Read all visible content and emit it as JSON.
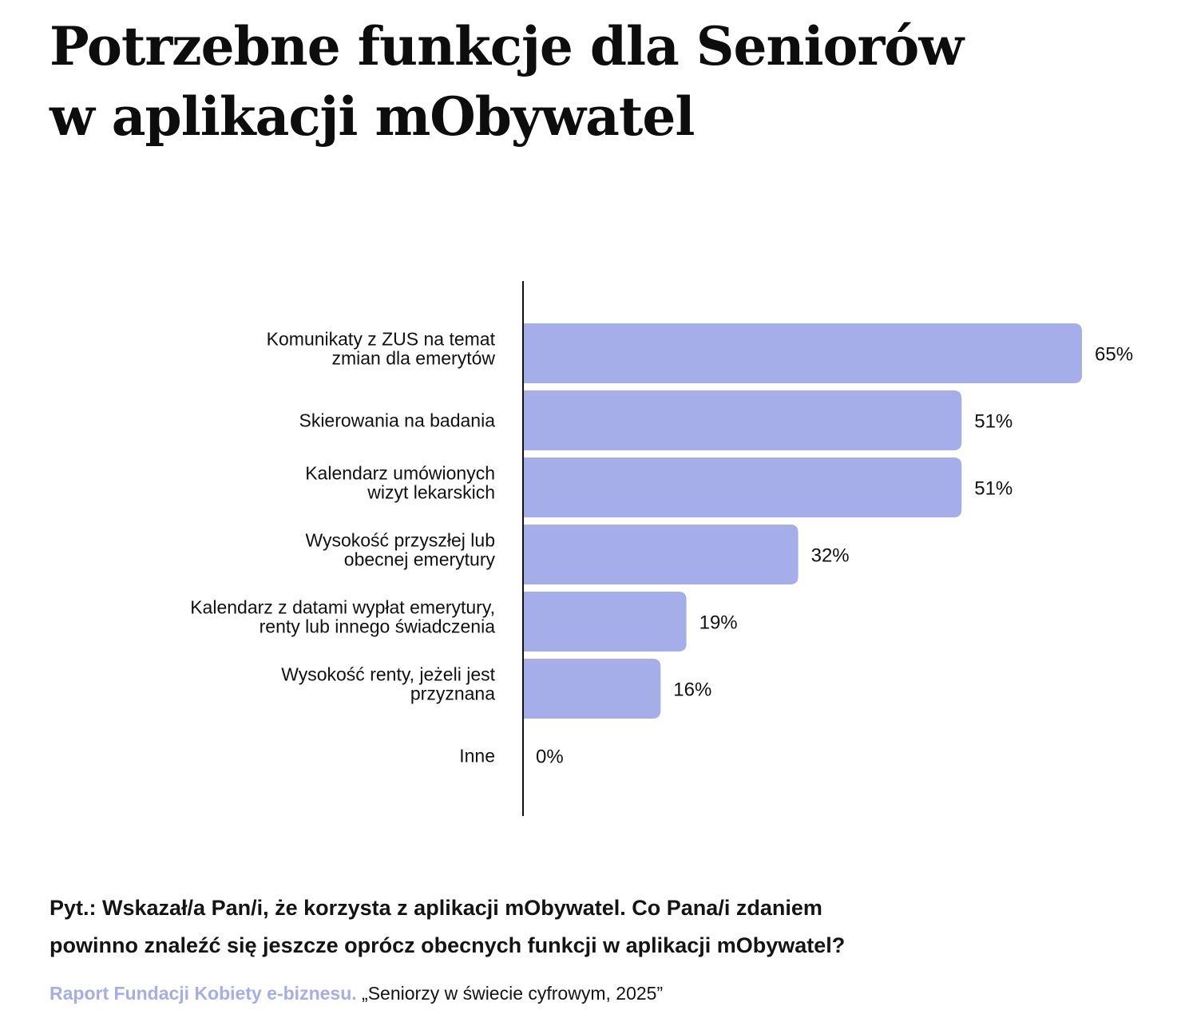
{
  "header": {
    "title_line1": "Potrzebne funkcje dla Seniorów",
    "title_line2": "w aplikacji mObywatel"
  },
  "footer": {
    "question_line1": "Pyt.: Wskazał/a Pan/i, że korzysta z aplikacji mObywatel. Co Pana/i zdaniem",
    "question_line2": "powinno znaleźć się jeszcze oprócz obecnych funkcji w aplikacji mObywatel?",
    "source_name": "Raport Fundacji Kobiety e-biznesu.",
    "source_title": "„Seniorzy w świecie cyfrowym, 2025”"
  },
  "chart_data": {
    "type": "bar",
    "orientation": "horizontal",
    "categories": [
      [
        "Komunikaty z ZUS na temat",
        "zmian dla emerytów"
      ],
      [
        "Skierowania na badania"
      ],
      [
        "Kalendarz umówionych",
        "wizyt lekarskich"
      ],
      [
        "Wysokość przyszłej lub",
        "obecnej emerytury"
      ],
      [
        "Kalendarz z datami wypłat emerytury,",
        "renty lub innego świadczenia"
      ],
      [
        "Wysokość renty, jeżeli jest",
        "przyznana"
      ],
      [
        "Inne"
      ]
    ],
    "values": [
      65,
      51,
      51,
      32,
      19,
      16,
      0
    ],
    "value_labels": [
      "65%",
      "51%",
      "51%",
      "32%",
      "19%",
      "16%",
      "0%"
    ],
    "unit": "%",
    "xlim": [
      0,
      65
    ],
    "grid": false,
    "legend": "none",
    "colors": {
      "bar": "#a5aee8",
      "axis": "#111111",
      "text": "#111111"
    }
  }
}
